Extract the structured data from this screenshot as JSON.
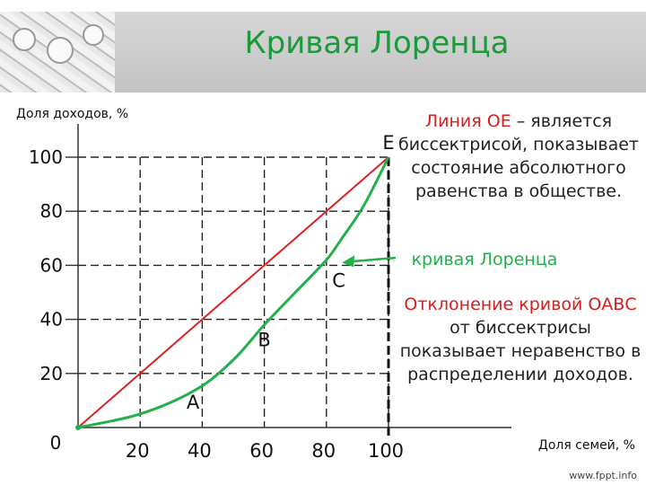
{
  "title": "Кривая Лоренца",
  "chart_data": {
    "type": "line",
    "ylabel": "Доля доходов, %",
    "xlabel": "Доля семей, %",
    "xlim": [
      0,
      100
    ],
    "ylim": [
      0,
      100
    ],
    "x_ticks": [
      20,
      40,
      60,
      80,
      100
    ],
    "y_ticks": [
      20,
      40,
      60,
      80,
      100
    ],
    "origin_label": "0",
    "series": [
      {
        "name": "Линия ОЕ",
        "color": "#e02020",
        "x": [
          0,
          100
        ],
        "y": [
          0,
          100
        ]
      },
      {
        "name": "кривая Лоренца",
        "color": "#22b04a",
        "x": [
          0,
          20,
          38,
          50,
          60,
          70,
          80,
          85,
          92,
          100
        ],
        "y": [
          0,
          5,
          14,
          25,
          38,
          50,
          62,
          70,
          82,
          100
        ]
      }
    ],
    "guide_points": [
      {
        "x": 40,
        "y": 14
      },
      {
        "x": 62,
        "y": 40
      },
      {
        "x": 85,
        "y": 62
      },
      {
        "x": 100,
        "y": 100
      }
    ],
    "point_labels": [
      {
        "label": "A",
        "x": 37,
        "y": 7
      },
      {
        "label": "B",
        "x": 60,
        "y": 30
      },
      {
        "label": "C",
        "x": 84,
        "y": 52
      },
      {
        "label": "E",
        "x": 100,
        "y": 103
      }
    ]
  },
  "notes": {
    "oe_lead": "Линия ОЕ",
    "oe_rest": " – является биссектрисой, показывает состояние абсолютного равенства в обществе.",
    "curve_label": "кривая Лоренца",
    "deviation_lead": "Отклонение кривой ОАВС",
    "deviation_rest": " от биссектрисы показывает неравенство в распределении доходов."
  },
  "watermark": "www.fppt.info",
  "colors": {
    "title": "#1a9a3a",
    "equality_line": "#e02020",
    "lorenz": "#22b04a",
    "accent": "#d42020"
  }
}
